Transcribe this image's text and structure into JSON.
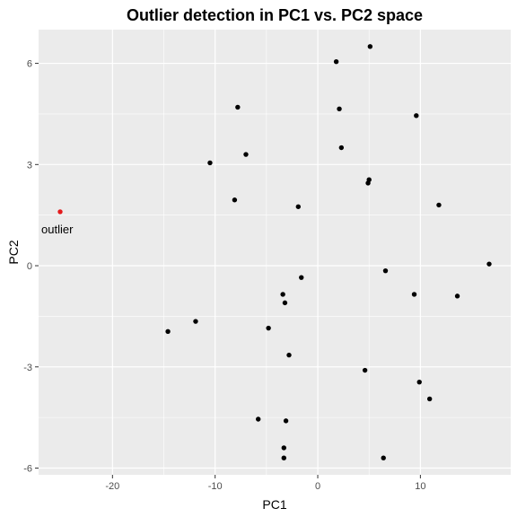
{
  "chart_data": {
    "type": "scatter",
    "title": "Outlier detection in PC1 vs. PC2 space",
    "xlabel": "PC1",
    "ylabel": "PC2",
    "xlim": [
      -27.2,
      18.8
    ],
    "ylim": [
      -6.2,
      7.0
    ],
    "xticks": [
      -20,
      -10,
      0,
      10
    ],
    "yticks": [
      -6,
      -3,
      0,
      3,
      6
    ],
    "grid": true,
    "panel_color": "#ebebeb",
    "grid_color": "#ffffff",
    "point_color": "#000000",
    "highlight_color": "#e41a1c",
    "points": [
      {
        "x": 5.1,
        "y": 6.5
      },
      {
        "x": 1.8,
        "y": 6.05
      },
      {
        "x": -7.8,
        "y": 4.7
      },
      {
        "x": 2.1,
        "y": 4.65
      },
      {
        "x": 9.6,
        "y": 4.45
      },
      {
        "x": 2.3,
        "y": 3.5
      },
      {
        "x": -7.0,
        "y": 3.3
      },
      {
        "x": -10.5,
        "y": 3.05
      },
      {
        "x": 5.0,
        "y": 2.55
      },
      {
        "x": 4.9,
        "y": 2.45
      },
      {
        "x": -8.1,
        "y": 1.95
      },
      {
        "x": -1.9,
        "y": 1.75
      },
      {
        "x": 11.8,
        "y": 1.8
      },
      {
        "x": 16.7,
        "y": 0.05
      },
      {
        "x": 6.6,
        "y": -0.15
      },
      {
        "x": -1.6,
        "y": -0.35
      },
      {
        "x": -3.4,
        "y": -0.85
      },
      {
        "x": 9.4,
        "y": -0.85
      },
      {
        "x": 13.6,
        "y": -0.9
      },
      {
        "x": -3.2,
        "y": -1.1
      },
      {
        "x": -11.9,
        "y": -1.65
      },
      {
        "x": -14.6,
        "y": -1.95
      },
      {
        "x": -4.8,
        "y": -1.85
      },
      {
        "x": -2.8,
        "y": -2.65
      },
      {
        "x": 4.6,
        "y": -3.1
      },
      {
        "x": 9.9,
        "y": -3.45
      },
      {
        "x": 10.9,
        "y": -3.95
      },
      {
        "x": -5.8,
        "y": -4.55
      },
      {
        "x": -3.1,
        "y": -4.6
      },
      {
        "x": -3.3,
        "y": -5.4
      },
      {
        "x": -3.3,
        "y": -5.7
      },
      {
        "x": 6.4,
        "y": -5.7
      }
    ],
    "outlier": {
      "x": -25.1,
      "y": 1.6,
      "label": "outlier"
    }
  }
}
